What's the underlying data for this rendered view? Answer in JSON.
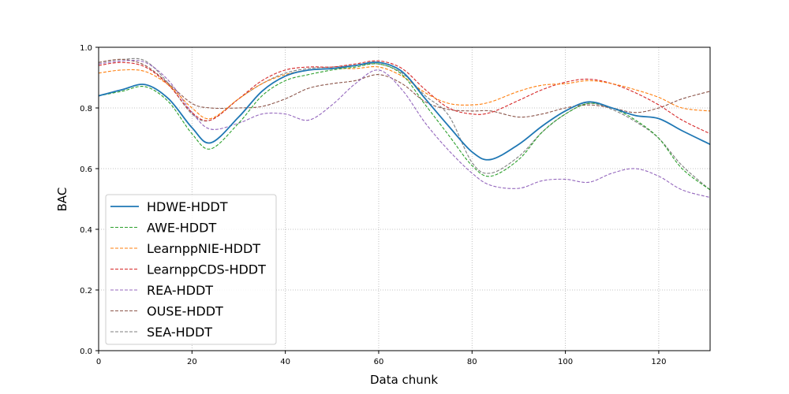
{
  "chart_data": {
    "type": "line",
    "title": "",
    "xlabel": "Data chunk",
    "ylabel": "BAC",
    "xlim": [
      0,
      131
    ],
    "ylim": [
      0.0,
      1.0
    ],
    "x_ticks": [
      0,
      20,
      40,
      60,
      80,
      100,
      120
    ],
    "y_ticks": [
      0.0,
      0.2,
      0.4,
      0.6,
      0.8,
      1.0
    ],
    "y_tick_labels": [
      "0.0",
      "0.2",
      "0.4",
      "0.6",
      "0.8",
      "1.0"
    ],
    "grid": true,
    "legend_position": "lower-left",
    "x": [
      0,
      5,
      10,
      15,
      20,
      24,
      30,
      35,
      40,
      45,
      50,
      55,
      60,
      65,
      70,
      75,
      80,
      84,
      90,
      95,
      100,
      105,
      110,
      115,
      120,
      125,
      131
    ],
    "series": [
      {
        "name": "HDWE-HDDT",
        "color": "#1f77b4",
        "dashed": false,
        "values": [
          0.84,
          0.86,
          0.877,
          0.83,
          0.735,
          0.685,
          0.77,
          0.855,
          0.905,
          0.925,
          0.93,
          0.94,
          0.95,
          0.92,
          0.83,
          0.74,
          0.655,
          0.63,
          0.68,
          0.74,
          0.79,
          0.82,
          0.8,
          0.775,
          0.765,
          0.725,
          0.68
        ]
      },
      {
        "name": "AWE-HDDT",
        "color": "#2ca02c",
        "dashed": true,
        "values": [
          0.84,
          0.855,
          0.87,
          0.82,
          0.715,
          0.665,
          0.75,
          0.84,
          0.89,
          0.91,
          0.925,
          0.935,
          0.945,
          0.91,
          0.81,
          0.71,
          0.61,
          0.575,
          0.63,
          0.72,
          0.78,
          0.815,
          0.8,
          0.76,
          0.7,
          0.6,
          0.53
        ]
      },
      {
        "name": "LearnppNIE-HDDT",
        "color": "#ff7f0e",
        "dashed": true,
        "values": [
          0.915,
          0.925,
          0.92,
          0.875,
          0.8,
          0.765,
          0.83,
          0.88,
          0.91,
          0.925,
          0.93,
          0.93,
          0.935,
          0.905,
          0.85,
          0.815,
          0.81,
          0.82,
          0.855,
          0.875,
          0.88,
          0.89,
          0.88,
          0.86,
          0.835,
          0.8,
          0.79
        ]
      },
      {
        "name": "LearnppCDS-HDDT",
        "color": "#d62728",
        "dashed": true,
        "values": [
          0.94,
          0.95,
          0.935,
          0.875,
          0.785,
          0.76,
          0.83,
          0.89,
          0.925,
          0.935,
          0.935,
          0.945,
          0.955,
          0.93,
          0.86,
          0.8,
          0.78,
          0.785,
          0.825,
          0.86,
          0.885,
          0.895,
          0.88,
          0.85,
          0.81,
          0.76,
          0.715
        ]
      },
      {
        "name": "REA-HDDT",
        "color": "#9467bd",
        "dashed": true,
        "values": [
          0.945,
          0.955,
          0.95,
          0.89,
          0.785,
          0.73,
          0.75,
          0.78,
          0.78,
          0.76,
          0.81,
          0.88,
          0.925,
          0.86,
          0.75,
          0.66,
          0.585,
          0.545,
          0.535,
          0.56,
          0.565,
          0.555,
          0.585,
          0.6,
          0.575,
          0.53,
          0.505
        ]
      },
      {
        "name": "OUSE-HDDT",
        "color": "#8c564b",
        "dashed": true,
        "values": [
          0.95,
          0.96,
          0.94,
          0.88,
          0.815,
          0.8,
          0.8,
          0.805,
          0.83,
          0.865,
          0.88,
          0.89,
          0.91,
          0.88,
          0.82,
          0.795,
          0.79,
          0.79,
          0.77,
          0.78,
          0.8,
          0.81,
          0.8,
          0.785,
          0.8,
          0.83,
          0.855
        ]
      },
      {
        "name": "SEA-HDDT",
        "color": "#7f7f7f",
        "dashed": true,
        "values": [
          0.95,
          0.96,
          0.955,
          0.88,
          0.78,
          0.76,
          0.83,
          0.88,
          0.915,
          0.93,
          0.935,
          0.94,
          0.945,
          0.915,
          0.84,
          0.775,
          0.62,
          0.585,
          0.64,
          0.72,
          0.78,
          0.815,
          0.795,
          0.755,
          0.7,
          0.61,
          0.53
        ]
      }
    ]
  }
}
